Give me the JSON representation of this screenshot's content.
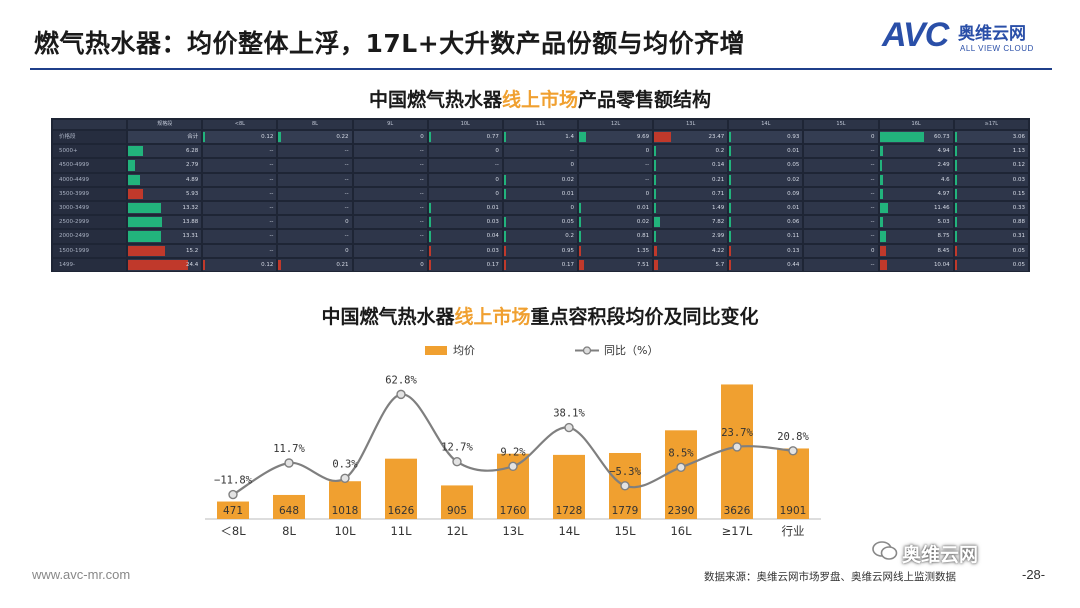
{
  "slide": {
    "title": "燃气热水器：均价整体上浮，17L+大升数产品份额与均价齐增",
    "logo_avc": "AVC",
    "logo_cn": "奥维云网",
    "logo_en": "ALL VIEW CLOUD",
    "footer_url": "www.avc-mr.com",
    "source": "数据来源：奥维云网市场罗盘、奥维云网线上监测数据",
    "page_number": "-28-",
    "wechat_label": "奥维云网"
  },
  "colors": {
    "bar": "#f0a030",
    "line": "#7f7f7f",
    "heat_green": "#22b37c",
    "heat_red": "#c0392b"
  },
  "table": {
    "title_parts": [
      "中国燃气热水器",
      "线上市场",
      "产品零售额结构"
    ],
    "columns": [
      "规格段",
      "<8L",
      "8L",
      "9L",
      "10L",
      "11L",
      "12L",
      "13L",
      "14L",
      "15L",
      "16L",
      "≥17L"
    ],
    "rows": [
      {
        "label": "价格段",
        "cells": [
          "合计",
          "0.12",
          "0.22",
          "0",
          "0.77",
          "1.4",
          "9.69",
          "23.47",
          "0.93",
          "0",
          "60.73",
          "3.06"
        ]
      },
      {
        "label": "5000+",
        "cells": [
          "6.28",
          "--",
          "--",
          "--",
          "0",
          "--",
          "0",
          "0.2",
          "0.01",
          "--",
          "4.94",
          "1.13"
        ]
      },
      {
        "label": "4500-4999",
        "cells": [
          "2.79",
          "--",
          "--",
          "--",
          "--",
          "0",
          "--",
          "0.14",
          "0.05",
          "--",
          "2.49",
          "0.12"
        ]
      },
      {
        "label": "4000-4499",
        "cells": [
          "4.89",
          "--",
          "--",
          "--",
          "0",
          "0.02",
          "--",
          "0.21",
          "0.02",
          "--",
          "4.6",
          "0.03"
        ]
      },
      {
        "label": "3500-3999",
        "cells": [
          "5.93",
          "--",
          "--",
          "--",
          "0",
          "0.01",
          "0",
          "0.71",
          "0.09",
          "--",
          "4.97",
          "0.15"
        ]
      },
      {
        "label": "3000-3499",
        "cells": [
          "13.32",
          "--",
          "--",
          "--",
          "0.01",
          "0",
          "0.01",
          "1.49",
          "0.01",
          "--",
          "11.46",
          "0.33"
        ]
      },
      {
        "label": "2500-2999",
        "cells": [
          "13.88",
          "--",
          "0",
          "--",
          "0.03",
          "0.05",
          "0.02",
          "7.82",
          "0.06",
          "--",
          "5.03",
          "0.88"
        ]
      },
      {
        "label": "2000-2499",
        "cells": [
          "13.31",
          "--",
          "--",
          "--",
          "0.04",
          "0.2",
          "0.81",
          "2.99",
          "0.11",
          "--",
          "8.75",
          "0.31"
        ]
      },
      {
        "label": "1500-1999",
        "cells": [
          "15.2",
          "--",
          "0",
          "--",
          "0.03",
          "0.95",
          "1.35",
          "4.22",
          "0.13",
          "0",
          "8.45",
          "0.05"
        ]
      },
      {
        "label": "1499-",
        "cells": [
          "24.4",
          "0.12",
          "0.21",
          "0",
          "0.17",
          "0.17",
          "7.51",
          "5.7",
          "0.44",
          "--",
          "10.04",
          "0.05"
        ]
      }
    ]
  },
  "chart_data": {
    "type": "bar",
    "title_parts": [
      "中国燃气热水器",
      "线上市场",
      "重点容积段均价及同比变化"
    ],
    "title": "中国燃气热水器线上市场重点容积段均价及同比变化",
    "categories": [
      "＜8L",
      "8L",
      "10L",
      "11L",
      "12L",
      "13L",
      "14L",
      "15L",
      "16L",
      "≥17L",
      "行业"
    ],
    "series": [
      {
        "name": "均价",
        "type": "bar",
        "values": [
          471,
          648,
          1018,
          1626,
          905,
          1760,
          1728,
          1779,
          2390,
          3626,
          1901
        ]
      },
      {
        "name": "同比（%）",
        "type": "line",
        "values": [
          -11.8,
          11.7,
          0.3,
          62.8,
          12.7,
          9.2,
          38.1,
          -5.3,
          8.5,
          23.7,
          20.8
        ],
        "labels": [
          "−11.8%",
          "11.7%",
          "0.3%",
          "62.8%",
          "12.7%",
          "9.2%",
          "38.1%",
          "−5.3%",
          "8.5%",
          "23.7%",
          "20.8%"
        ]
      }
    ],
    "legend": [
      "均价",
      "同比（%）"
    ],
    "legend_position": "top-center",
    "bar_ylim": [
      0,
      3800
    ],
    "line_ylim": [
      -30,
      75
    ],
    "xlabel": "",
    "ylabel": "",
    "grid": false
  }
}
